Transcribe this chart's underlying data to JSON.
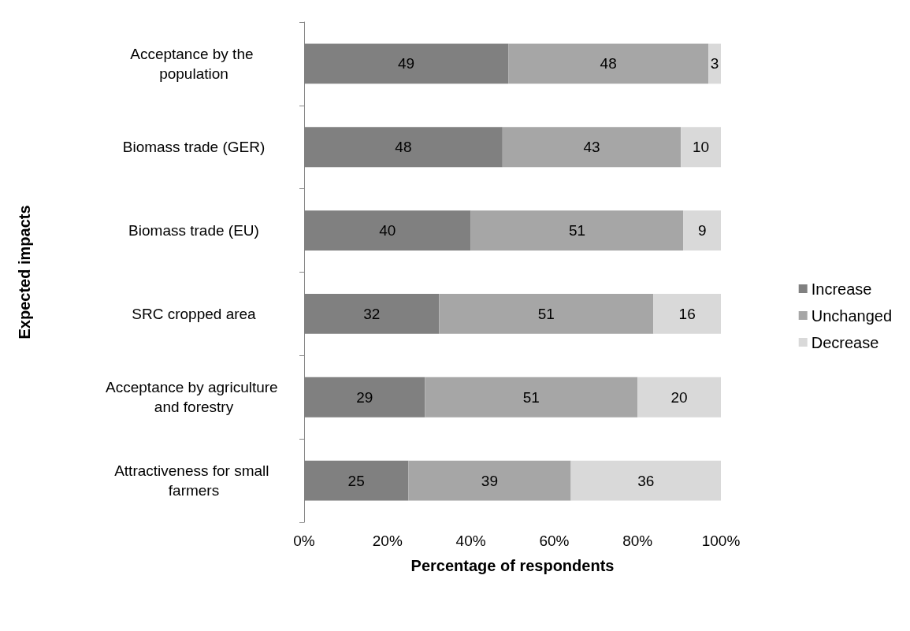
{
  "chart_data": {
    "type": "bar",
    "orientation": "horizontal",
    "stacked": true,
    "xlabel": "Percentage of respondents",
    "ylabel": "Expected impacts",
    "categories": [
      "Acceptance by the population",
      "Biomass trade (GER)",
      "Biomass trade (EU)",
      "SRC cropped area",
      "Acceptance by agriculture and forestry",
      "Attractiveness for small farmers"
    ],
    "series": [
      {
        "name": "Increase",
        "color": "#808080",
        "values": [
          49,
          47.6,
          40,
          32.4,
          29,
          25
        ],
        "value_labels": [
          "49",
          "48",
          "40",
          "32",
          "29",
          "25"
        ]
      },
      {
        "name": "Unchanged",
        "color": "#a6a6a6",
        "values": [
          48,
          42.8,
          51,
          51.4,
          51,
          39
        ],
        "value_labels": [
          "48",
          "43",
          "51",
          "51",
          "51",
          "39"
        ]
      },
      {
        "name": "Decrease",
        "color": "#d9d9d9",
        "values": [
          3,
          9.6,
          9,
          16.2,
          20,
          36
        ],
        "value_labels": [
          "3",
          "10",
          "9",
          "16",
          "20",
          "36"
        ]
      }
    ],
    "xlim": [
      0,
      100
    ],
    "xticks": [
      {
        "value": 0,
        "label": "0%"
      },
      {
        "value": 20,
        "label": "20%"
      },
      {
        "value": 40,
        "label": "40%"
      },
      {
        "value": 60,
        "label": "60%"
      },
      {
        "value": 80,
        "label": "80%"
      },
      {
        "value": 100,
        "label": "100%"
      }
    ],
    "grid": false,
    "legend": "right"
  }
}
